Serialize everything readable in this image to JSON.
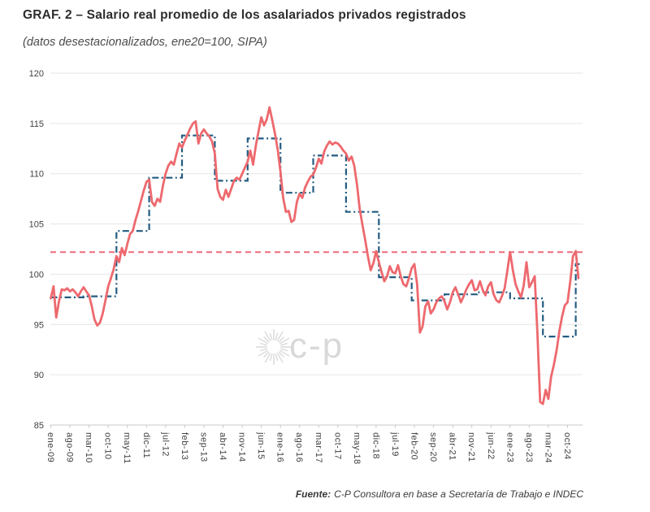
{
  "header": {
    "title": "GRAF. 2 – Salario real promedio de los asalariados privados registrados",
    "subtitle": "(datos desestacionalizados, ene20=100, SIPA)"
  },
  "footer": {
    "source_label": "Fuente:",
    "source_text": "C-P Consultora en base a Secretaría de Trabajo e INDEC"
  },
  "watermark": {
    "icon": "sunburst-icon",
    "text": "c-p",
    "color": "#d9d9d9"
  },
  "colors": {
    "monthly_line": "#ED696E",
    "annual_line": "#235C82",
    "reference_line": "#EC6D7B",
    "grid": "#E6E6E6",
    "axis": "#C8C8C8"
  },
  "chart_data": {
    "type": "line",
    "title": "Salario real promedio de los asalariados privados registrados",
    "subtitle": "datos desestacionalizados, ene20=100, SIPA",
    "grid": true,
    "legend": false,
    "ylim": [
      85,
      120
    ],
    "y_ticks": [
      85,
      90,
      95,
      100,
      105,
      110,
      115,
      120
    ],
    "x_start": "ene-09",
    "x_end": "feb-25",
    "x_ticks": [
      {
        "label": "ene-09",
        "month": 0
      },
      {
        "label": "ago-09",
        "month": 7
      },
      {
        "label": "mar-10",
        "month": 14
      },
      {
        "label": "oct-10",
        "month": 21
      },
      {
        "label": "may-11",
        "month": 28
      },
      {
        "label": "dic-11",
        "month": 35
      },
      {
        "label": "jul-12",
        "month": 42
      },
      {
        "label": "feb-13",
        "month": 49
      },
      {
        "label": "sep-13",
        "month": 56
      },
      {
        "label": "abr-14",
        "month": 63
      },
      {
        "label": "nov-14",
        "month": 70
      },
      {
        "label": "jun-15",
        "month": 77
      },
      {
        "label": "ene-16",
        "month": 84
      },
      {
        "label": "ago-16",
        "month": 91
      },
      {
        "label": "mar-17",
        "month": 98
      },
      {
        "label": "oct-17",
        "month": 105
      },
      {
        "label": "may-18",
        "month": 112
      },
      {
        "label": "dic-18",
        "month": 119
      },
      {
        "label": "jul-19",
        "month": 126
      },
      {
        "label": "feb-20",
        "month": 133
      },
      {
        "label": "sep-20",
        "month": 140
      },
      {
        "label": "abr-21",
        "month": 147
      },
      {
        "label": "nov-21",
        "month": 154
      },
      {
        "label": "jun-22",
        "month": 161
      },
      {
        "label": "ene-23",
        "month": 168
      },
      {
        "label": "ago-23",
        "month": 175
      },
      {
        "label": "mar-24",
        "month": 182
      },
      {
        "label": "oct-24",
        "month": 189
      }
    ],
    "reference_line": {
      "value": 102.2,
      "style": "dashed",
      "color": "#EC6D7B"
    },
    "series": [
      {
        "name": "salario real mensual",
        "color": "#ED696E",
        "style": "solid",
        "start": "2009-01",
        "values": [
          97.6,
          98.8,
          95.7,
          97.3,
          98.5,
          98.4,
          98.6,
          98.3,
          98.5,
          98.2,
          97.8,
          98.3,
          98.7,
          98.3,
          97.9,
          96.8,
          95.5,
          94.9,
          95.2,
          96.1,
          97.4,
          98.8,
          99.6,
          100.5,
          101.8,
          101.2,
          102.6,
          101.9,
          103.0,
          104.0,
          104.3,
          105.4,
          106.3,
          107.3,
          108.3,
          109.2,
          109.4,
          107.2,
          106.8,
          107.5,
          107.2,
          108.8,
          110.0,
          110.8,
          111.2,
          110.9,
          112.0,
          113.0,
          112.6,
          113.3,
          113.9,
          114.5,
          115.0,
          115.2,
          113.0,
          114.0,
          114.4,
          114.0,
          113.7,
          113.2,
          112.0,
          108.5,
          107.7,
          107.4,
          108.4,
          107.7,
          108.5,
          109.3,
          109.6,
          109.4,
          110.0,
          110.6,
          111.2,
          112.3,
          110.9,
          112.8,
          114.2,
          115.6,
          114.8,
          115.4,
          116.6,
          115.3,
          114.0,
          112.4,
          110.2,
          107.6,
          106.2,
          106.3,
          105.2,
          105.4,
          107.2,
          108.0,
          107.6,
          108.6,
          109.2,
          109.7,
          109.9,
          110.6,
          111.5,
          111.0,
          112.2,
          112.8,
          113.2,
          112.9,
          113.1,
          113.0,
          112.7,
          112.3,
          112.0,
          111.3,
          111.7,
          110.8,
          108.9,
          106.5,
          104.9,
          103.4,
          101.8,
          100.4,
          101.1,
          102.3,
          101.2,
          100.2,
          99.3,
          99.8,
          100.8,
          100.2,
          100.1,
          100.9,
          99.8,
          99.0,
          98.8,
          99.6,
          100.6,
          101.0,
          99.0,
          94.2,
          94.8,
          96.8,
          97.3,
          96.1,
          96.5,
          97.2,
          97.6,
          97.8,
          97.3,
          96.5,
          97.2,
          98.2,
          98.7,
          98.0,
          97.2,
          97.8,
          98.5,
          99.0,
          99.4,
          98.4,
          98.5,
          99.3,
          98.4,
          97.9,
          98.8,
          99.2,
          98.0,
          97.4,
          97.2,
          97.8,
          98.6,
          100.4,
          102.2,
          100.4,
          99.0,
          98.3,
          97.7,
          98.9,
          101.2,
          98.7,
          99.2,
          99.8,
          94.0,
          87.3,
          87.1,
          88.5,
          87.6,
          89.8,
          91.0,
          92.4,
          94.3,
          95.8,
          96.9,
          97.2,
          99.3,
          101.8,
          102.3,
          99.6
        ]
      },
      {
        "name": "promedio anual",
        "color": "#235C82",
        "style": "dash-dot-step",
        "annual_averages": [
          {
            "year": 2009,
            "value": 97.7
          },
          {
            "year": 2010,
            "value": 97.8
          },
          {
            "year": 2011,
            "value": 104.3
          },
          {
            "year": 2012,
            "value": 109.6
          },
          {
            "year": 2013,
            "value": 113.8
          },
          {
            "year": 2014,
            "value": 109.3
          },
          {
            "year": 2015,
            "value": 113.5
          },
          {
            "year": 2016,
            "value": 108.1
          },
          {
            "year": 2017,
            "value": 111.8
          },
          {
            "year": 2018,
            "value": 106.2
          },
          {
            "year": 2019,
            "value": 99.7
          },
          {
            "year": 2020,
            "value": 97.4
          },
          {
            "year": 2021,
            "value": 98.0
          },
          {
            "year": 2022,
            "value": 98.2
          },
          {
            "year": 2023,
            "value": 97.6
          },
          {
            "year": 2024,
            "value": 93.8
          },
          {
            "year": 2025,
            "value": 101.0
          }
        ]
      }
    ]
  }
}
